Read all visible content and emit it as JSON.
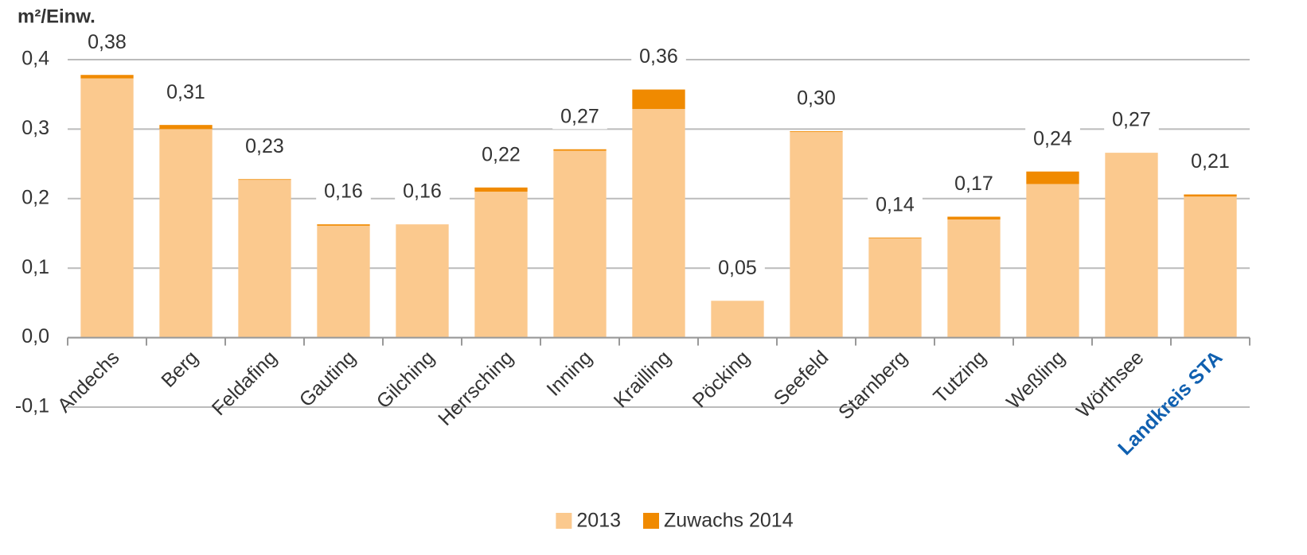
{
  "chart_data": {
    "type": "stacked_bar",
    "y_axis_label": "m²/Einw.",
    "categories": [
      "Andechs",
      "Berg",
      "Feldafing",
      "Gauting",
      "Gilching",
      "Herrsching",
      "Inning",
      "Krailling",
      "Pöcking",
      "Seefeld",
      "Starnberg",
      "Tutzing",
      "Weßling",
      "Wörthsee",
      "Landkreis STA"
    ],
    "series": [
      {
        "name": "2013",
        "color": "#fbc98e",
        "values": [
          0.373,
          0.3,
          0.227,
          0.161,
          0.163,
          0.21,
          0.269,
          0.329,
          0.053,
          0.296,
          0.143,
          0.17,
          0.221,
          0.266,
          0.203
        ]
      },
      {
        "name": "Zuwachs 2014",
        "color": "#f08a00",
        "values": [
          0.005,
          0.006,
          0.001,
          0.002,
          0.0,
          0.006,
          0.002,
          0.028,
          0.0,
          0.001,
          0.001,
          0.004,
          0.018,
          0.0,
          0.003
        ]
      }
    ],
    "total_labels": [
      "0,38",
      "0,31",
      "0,23",
      "0,16",
      "0,16",
      "0,22",
      "0,27",
      "0,36",
      "0,05",
      "0,30",
      "0,14",
      "0,17",
      "0,24",
      "0,27",
      "0,21"
    ],
    "ylim": [
      -0.1,
      0.4
    ],
    "yticks": [
      {
        "value": -0.1,
        "label": "-0,1"
      },
      {
        "value": 0.0,
        "label": "0,0"
      },
      {
        "value": 0.1,
        "label": "0,1"
      },
      {
        "value": 0.2,
        "label": "0,2"
      },
      {
        "value": 0.3,
        "label": "0,3"
      },
      {
        "value": 0.4,
        "label": "0,4"
      }
    ],
    "grid": true,
    "highlight_category": "Landkreis STA",
    "highlight_color": "#1060b0",
    "legend": "bottom"
  }
}
